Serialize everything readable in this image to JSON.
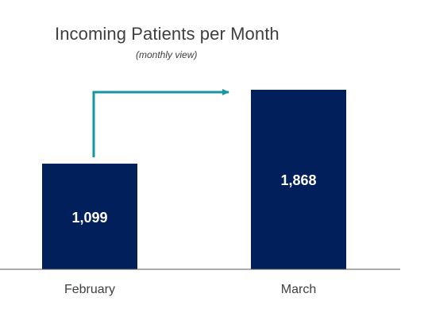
{
  "chart_data": {
    "type": "bar",
    "title": "Incoming Patients per Month",
    "subtitle": "(monthly view)",
    "categories": [
      "February",
      "March"
    ],
    "values": [
      1099,
      1868
    ],
    "value_labels": [
      "1,099",
      "1,868"
    ],
    "colors": {
      "bar": "#001f5b",
      "arrow": "#1596a0",
      "axis": "#595959"
    },
    "annotation": "increase-arrow-from-first-bar-to-second-bar",
    "grid": false,
    "legend": "none"
  }
}
